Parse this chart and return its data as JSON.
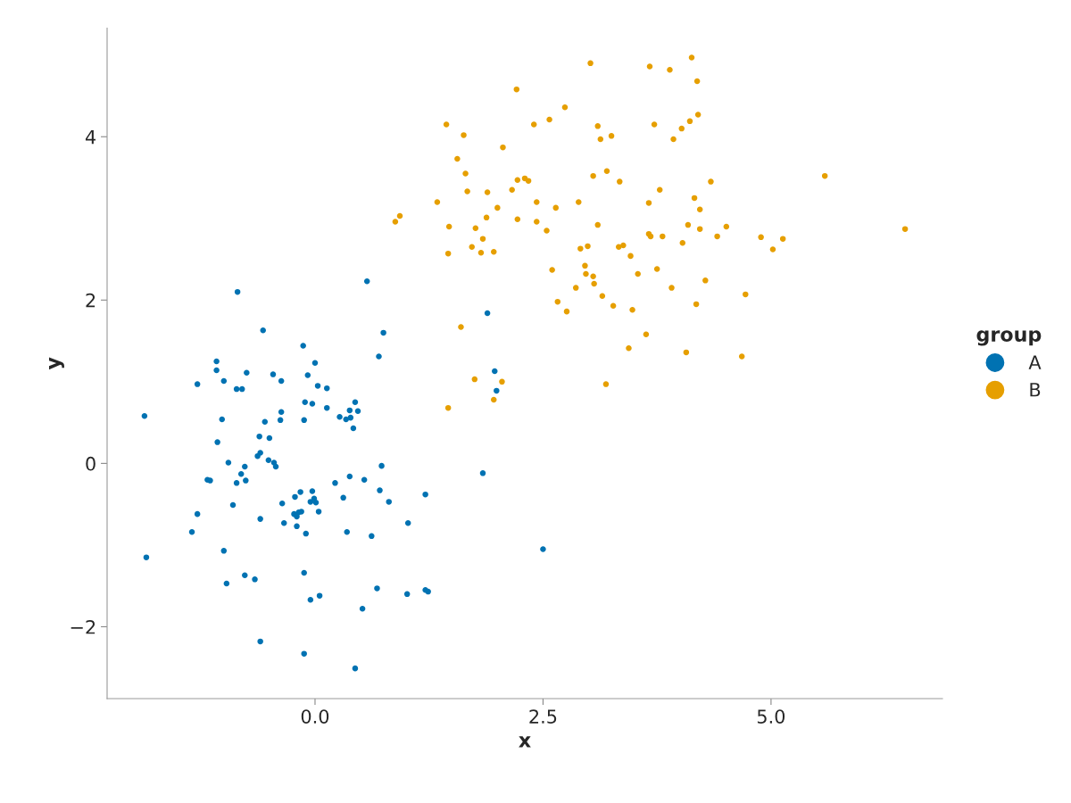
{
  "chart_data": {
    "type": "scatter",
    "xlabel": "x",
    "ylabel": "y",
    "legend_title": "group",
    "legend": "right",
    "grid": false,
    "marker": "circle",
    "xlim": [
      -2.28,
      6.88
    ],
    "ylim": [
      -2.88,
      5.33
    ],
    "xticks": [
      {
        "value": 0,
        "label": "0.0"
      },
      {
        "value": 2.5,
        "label": "2.5"
      },
      {
        "value": 5,
        "label": "5.0"
      }
    ],
    "yticks": [
      {
        "value": -2,
        "label": "−2"
      },
      {
        "value": 0,
        "label": "0"
      },
      {
        "value": 2,
        "label": "2"
      },
      {
        "value": 4,
        "label": "4"
      }
    ],
    "series": [
      {
        "name": "A",
        "color": "#0072b2",
        "x": [
          -1.87,
          -1.85,
          -0.85,
          0.57,
          0.75,
          0.7,
          -0.13,
          -0.57,
          -1.08,
          -1.08,
          -0.75,
          -1.29,
          -1.0,
          -0.46,
          -0.37,
          0.0,
          -0.08,
          0.03,
          0.13,
          -0.86,
          -0.8,
          -0.11,
          -0.03,
          0.44,
          0.47,
          0.38,
          0.13,
          -0.37,
          -0.55,
          -1.02,
          -0.38,
          -0.12,
          0.27,
          0.34,
          0.39,
          0.42,
          -1.07,
          -0.61,
          -0.5,
          -0.6,
          -0.63,
          -0.51,
          -0.45,
          -0.43,
          -0.95,
          -0.77,
          -1.18,
          -1.15,
          -0.76,
          -0.86,
          -0.81,
          0.73,
          0.54,
          0.22,
          0.38,
          1.21,
          -0.16,
          -0.03,
          -0.22,
          -0.01,
          -0.05,
          0.01,
          0.31,
          0.71,
          0.81,
          -0.36,
          -0.9,
          0.04,
          -0.23,
          -0.18,
          -0.15,
          -0.2,
          -1.29,
          -0.6,
          -0.34,
          -0.2,
          1.02,
          -1.35,
          -0.1,
          0.35,
          0.62,
          -1.0,
          2.5,
          -0.12,
          -0.77,
          -0.66,
          -0.97,
          0.68,
          1.21,
          1.24,
          1.01,
          0.05,
          -0.05,
          0.52,
          -0.6,
          -0.12,
          0.44,
          1.89,
          1.97,
          1.99,
          1.84
        ],
        "values": [
          0.58,
          -1.15,
          2.1,
          2.23,
          1.6,
          1.31,
          1.44,
          1.63,
          1.25,
          1.14,
          1.11,
          0.97,
          1.01,
          1.09,
          1.01,
          1.23,
          1.08,
          0.95,
          0.92,
          0.91,
          0.91,
          0.75,
          0.73,
          0.75,
          0.64,
          0.65,
          0.68,
          0.63,
          0.51,
          0.54,
          0.53,
          0.53,
          0.57,
          0.54,
          0.56,
          0.43,
          0.26,
          0.33,
          0.31,
          0.13,
          0.09,
          0.04,
          0.01,
          -0.04,
          0.01,
          -0.04,
          -0.2,
          -0.21,
          -0.21,
          -0.24,
          -0.13,
          -0.03,
          -0.2,
          -0.24,
          -0.16,
          -0.38,
          -0.35,
          -0.34,
          -0.41,
          -0.43,
          -0.47,
          -0.48,
          -0.42,
          -0.33,
          -0.47,
          -0.49,
          -0.51,
          -0.59,
          -0.62,
          -0.6,
          -0.59,
          -0.65,
          -0.62,
          -0.68,
          -0.73,
          -0.77,
          -0.73,
          -0.84,
          -0.86,
          -0.84,
          -0.89,
          -1.07,
          -1.05,
          -1.34,
          -1.37,
          -1.42,
          -1.47,
          -1.53,
          -1.55,
          -1.57,
          -1.6,
          -1.62,
          -1.67,
          -1.78,
          -2.18,
          -2.33,
          -2.51,
          1.84,
          1.13,
          0.89,
          -0.12
        ]
      },
      {
        "name": "B",
        "color": "#e69f00",
        "x": [
          4.13,
          3.02,
          3.67,
          3.89,
          4.19,
          2.21,
          2.74,
          2.57,
          1.44,
          2.4,
          3.1,
          3.72,
          4.2,
          4.11,
          4.02,
          3.25,
          3.13,
          1.63,
          3.93,
          2.06,
          1.56,
          1.65,
          5.59,
          3.05,
          3.2,
          4.34,
          3.34,
          2.3,
          2.22,
          2.34,
          2.16,
          1.67,
          1.89,
          3.78,
          1.34,
          2.89,
          3.66,
          4.16,
          2.0,
          2.64,
          4.22,
          2.43,
          0.93,
          1.88,
          0.88,
          2.22,
          2.43,
          3.1,
          4.09,
          4.51,
          1.47,
          6.47,
          4.22,
          2.54,
          1.76,
          3.66,
          3.81,
          4.41,
          4.89,
          3.68,
          5.13,
          1.84,
          4.03,
          1.72,
          2.99,
          3.38,
          3.33,
          2.91,
          1.96,
          1.82,
          5.02,
          1.46,
          3.46,
          2.6,
          3.75,
          2.96,
          2.97,
          3.54,
          3.05,
          3.06,
          2.86,
          3.91,
          4.28,
          3.15,
          4.72,
          2.66,
          4.18,
          3.27,
          2.76,
          3.48,
          1.6,
          3.63,
          3.44,
          4.07,
          4.68,
          1.75,
          2.05,
          3.19,
          1.96,
          1.46
        ],
        "values": [
          4.97,
          4.9,
          4.86,
          4.82,
          4.68,
          4.58,
          4.36,
          4.21,
          4.15,
          4.15,
          4.13,
          4.15,
          4.27,
          4.19,
          4.1,
          4.01,
          3.97,
          4.02,
          3.97,
          3.87,
          3.73,
          3.55,
          3.52,
          3.52,
          3.58,
          3.45,
          3.45,
          3.49,
          3.47,
          3.46,
          3.35,
          3.33,
          3.32,
          3.35,
          3.2,
          3.2,
          3.19,
          3.25,
          3.13,
          3.13,
          3.11,
          3.2,
          3.03,
          3.01,
          2.96,
          2.99,
          2.96,
          2.92,
          2.92,
          2.9,
          2.9,
          2.87,
          2.87,
          2.85,
          2.88,
          2.81,
          2.78,
          2.78,
          2.77,
          2.78,
          2.75,
          2.75,
          2.7,
          2.65,
          2.66,
          2.67,
          2.65,
          2.63,
          2.59,
          2.58,
          2.62,
          2.57,
          2.54,
          2.37,
          2.38,
          2.42,
          2.32,
          2.32,
          2.29,
          2.2,
          2.15,
          2.15,
          2.24,
          2.05,
          2.07,
          1.98,
          1.95,
          1.93,
          1.86,
          1.88,
          1.67,
          1.58,
          1.41,
          1.36,
          1.31,
          1.03,
          1.0,
          0.97,
          0.78,
          0.68
        ]
      }
    ]
  }
}
